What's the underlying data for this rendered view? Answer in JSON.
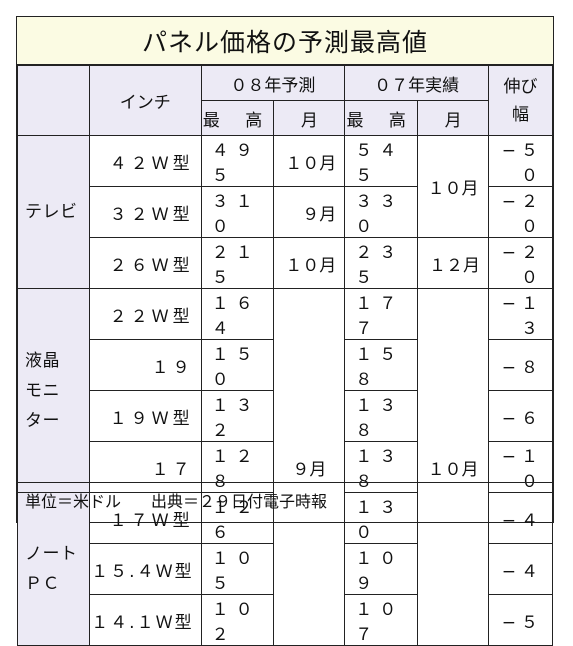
{
  "title": "パネル価格の予測最高値",
  "header": {
    "inch": "インチ",
    "forecast08": "０８年予測",
    "actual07": "０７年実績",
    "change": "伸び\n幅",
    "max": "最 高",
    "month": "月"
  },
  "groups": {
    "tv": "テレビ",
    "lcd": "液晶\nモニ\nター",
    "pc": "ノート\nＰＣ"
  },
  "rows": [
    {
      "size": "４２Ｗ型",
      "f_max": "４９５",
      "f_month": "１０月",
      "a_max": "５４５",
      "change": "−５０"
    },
    {
      "size": "３２Ｗ型",
      "f_max": "３１０",
      "f_month": "９月",
      "a_max": "３３０",
      "change": "−２０"
    },
    {
      "size": "２６Ｗ型",
      "f_max": "２１５",
      "f_month": "１０月",
      "a_max": "２３５",
      "a_month": "１２月",
      "change": "−２０"
    },
    {
      "size": "２２Ｗ型",
      "f_max": "１６４",
      "a_max": "１７７",
      "change": "−１３"
    },
    {
      "size": "１９",
      "f_max": "１５０",
      "a_max": "１５８",
      "change": "−８"
    },
    {
      "size": "１９Ｗ型",
      "f_max": "１３２",
      "a_max": "１３８",
      "change": "−６"
    },
    {
      "size": "１７",
      "f_max": "１２８",
      "a_max": "１３８",
      "change": "−１０"
    },
    {
      "size": "１７Ｗ型",
      "f_max": "１２６",
      "a_max": "１３０",
      "change": "−４"
    },
    {
      "size": "１５.４Ｗ型",
      "f_max": "１０５",
      "a_max": "１０９",
      "change": "−４"
    },
    {
      "size": "１４.１Ｗ型",
      "f_max": "１０２",
      "a_max": "１０７",
      "change": "−５"
    }
  ],
  "merged": {
    "tv_a_month": "１０月",
    "lower_f_month": "９月",
    "lower_a_month": "１０月"
  },
  "footer": {
    "unit": "単位＝米ドル",
    "source": "出典＝２９日付電子時報"
  }
}
